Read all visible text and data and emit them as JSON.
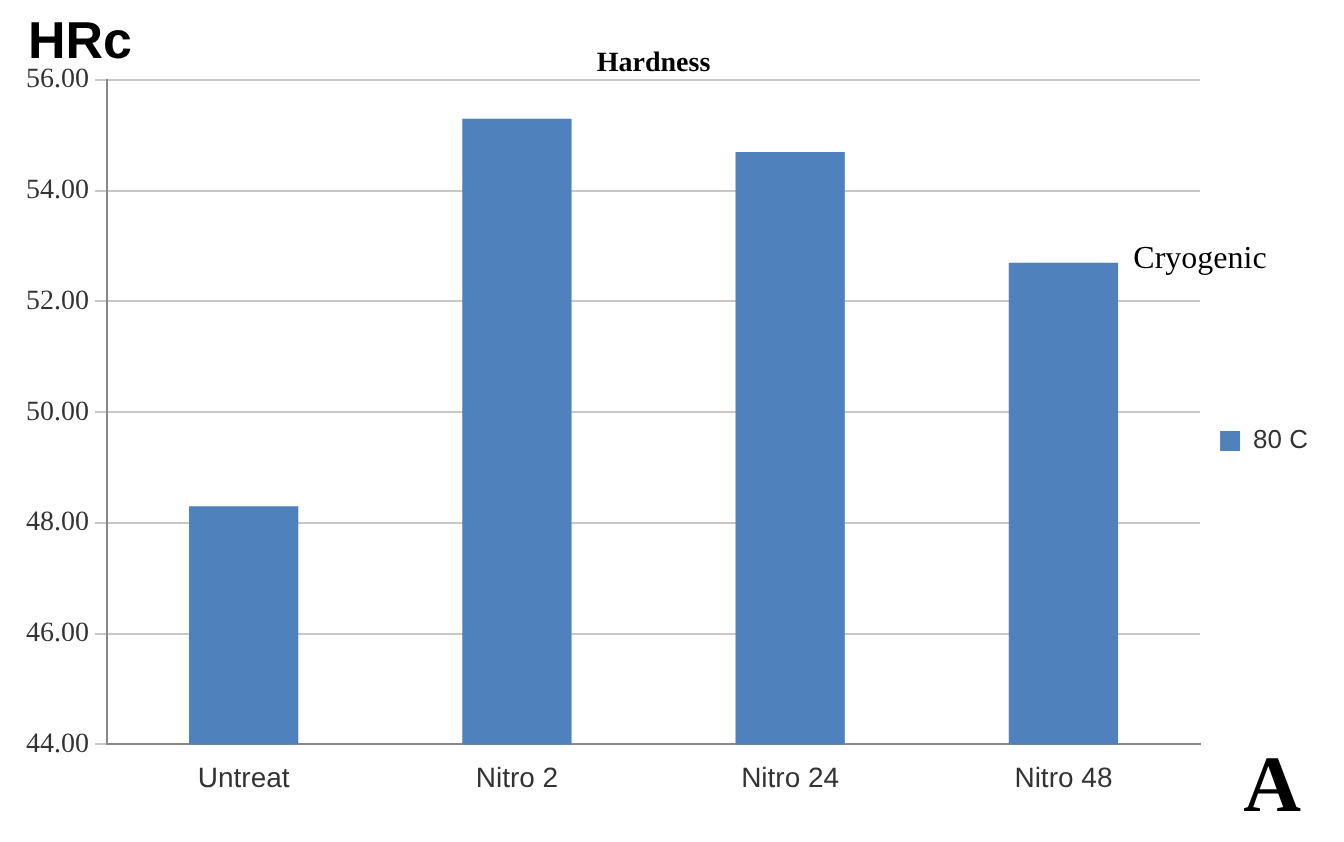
{
  "chart_data": {
    "type": "bar",
    "title": "Hardness",
    "ylabel": "HRc",
    "categories": [
      "Untreat",
      "Nitro 2",
      "Nitro 24",
      "Nitro 48"
    ],
    "series": [
      {
        "name": "80 C",
        "color": "#4f81bd",
        "values": [
          48.3,
          55.3,
          54.7,
          52.7
        ]
      }
    ],
    "ylim": [
      44,
      56
    ],
    "yticks": [
      {
        "value": 44,
        "label": "44.00"
      },
      {
        "value": 46,
        "label": "46.00"
      },
      {
        "value": 48,
        "label": "48.00"
      },
      {
        "value": 50,
        "label": "50.00"
      },
      {
        "value": 52,
        "label": "52.00"
      },
      {
        "value": 54,
        "label": "54.00"
      },
      {
        "value": 56,
        "label": "56.00"
      }
    ],
    "grid": "y",
    "legend": "right",
    "annotations": [
      "Cryogenic",
      "A"
    ]
  }
}
